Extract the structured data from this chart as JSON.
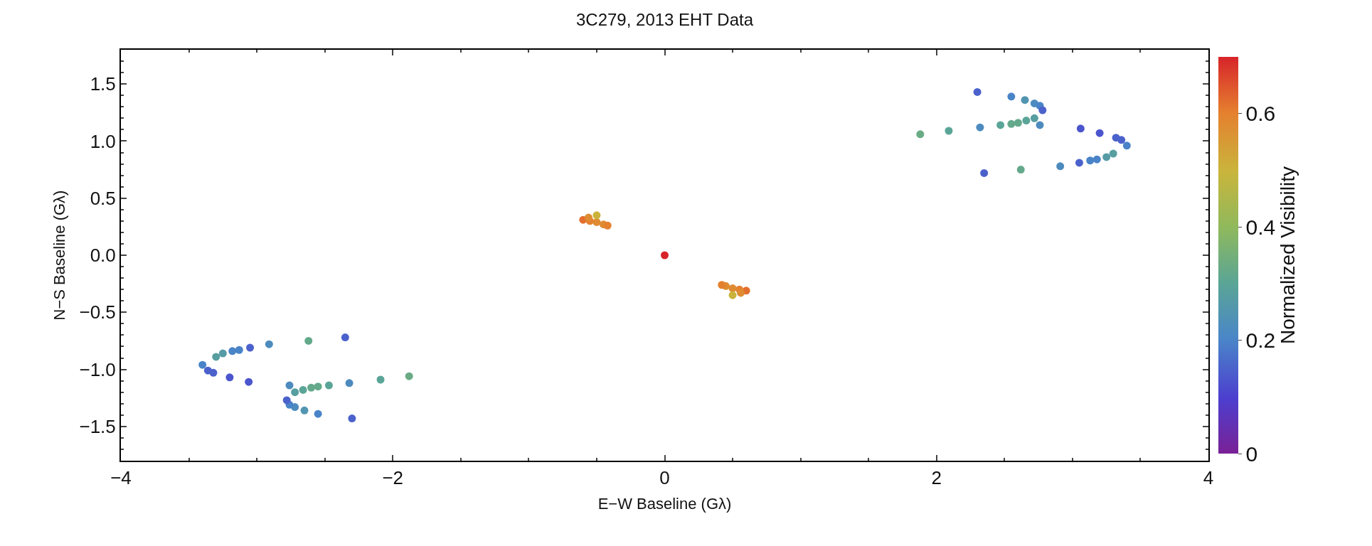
{
  "chart_data": {
    "type": "scatter",
    "title": "3C279, 2013 EHT Data",
    "xlabel": "E−W Baseline (Gλ)",
    "ylabel": "N−S Baseline (Gλ)",
    "clabel": "Normalized Visibility",
    "x": [
      2.3,
      2.55,
      2.65,
      2.72,
      2.76,
      2.78,
      1.88,
      2.09,
      2.32,
      2.47,
      2.55,
      2.6,
      2.66,
      2.72,
      2.76,
      2.35,
      2.62,
      2.91,
      3.05,
      3.13,
      3.18,
      3.25,
      3.3,
      3.4,
      3.36,
      3.32,
      3.2,
      3.06,
      -2.3,
      -2.55,
      -2.65,
      -2.72,
      -2.76,
      -2.78,
      -1.88,
      -2.09,
      -2.32,
      -2.47,
      -2.55,
      -2.6,
      -2.66,
      -2.72,
      -2.76,
      -2.35,
      -2.62,
      -2.91,
      -3.05,
      -3.13,
      -3.18,
      -3.25,
      -3.3,
      -3.4,
      -3.36,
      -3.32,
      -3.2,
      -3.06,
      -0.6,
      -0.55,
      -0.5,
      -0.45,
      -0.42,
      -0.5,
      -0.56,
      0.6,
      0.55,
      0.5,
      0.45,
      0.42,
      0.5,
      0.56,
      0
    ],
    "values": [
      1.43,
      1.39,
      1.36,
      1.33,
      1.31,
      1.27,
      1.06,
      1.09,
      1.12,
      1.14,
      1.15,
      1.16,
      1.18,
      1.2,
      1.14,
      0.72,
      0.75,
      0.78,
      0.81,
      0.83,
      0.84,
      0.86,
      0.89,
      0.96,
      1.01,
      1.03,
      1.07,
      1.11,
      -1.43,
      -1.39,
      -1.36,
      -1.33,
      -1.31,
      -1.27,
      -1.06,
      -1.09,
      -1.12,
      -1.14,
      -1.15,
      -1.16,
      -1.18,
      -1.2,
      -1.14,
      -0.72,
      -0.75,
      -0.78,
      -0.81,
      -0.83,
      -0.84,
      -0.86,
      -0.89,
      -0.96,
      -1.01,
      -1.03,
      -1.07,
      -1.11,
      0.31,
      0.3,
      0.29,
      0.27,
      0.26,
      0.35,
      0.33,
      -0.31,
      -0.3,
      -0.29,
      -0.27,
      -0.26,
      -0.35,
      -0.33,
      0
    ],
    "cvalues": [
      0.15,
      0.2,
      0.25,
      0.22,
      0.2,
      0.15,
      0.33,
      0.3,
      0.22,
      0.3,
      0.32,
      0.32,
      0.3,
      0.28,
      0.22,
      0.15,
      0.32,
      0.22,
      0.15,
      0.2,
      0.2,
      0.27,
      0.28,
      0.2,
      0.15,
      0.15,
      0.13,
      0.13,
      0.15,
      0.2,
      0.25,
      0.22,
      0.2,
      0.15,
      0.33,
      0.3,
      0.22,
      0.3,
      0.32,
      0.32,
      0.3,
      0.28,
      0.22,
      0.15,
      0.32,
      0.22,
      0.15,
      0.2,
      0.2,
      0.27,
      0.28,
      0.2,
      0.15,
      0.15,
      0.13,
      0.13,
      0.62,
      0.6,
      0.58,
      0.58,
      0.6,
      0.5,
      0.58,
      0.62,
      0.6,
      0.58,
      0.58,
      0.6,
      0.5,
      0.58,
      0.7
    ],
    "xlim": [
      -4,
      4
    ],
    "xticks": [
      {
        "value": -4,
        "label": "−4"
      },
      {
        "value": -2,
        "label": "−2"
      },
      0,
      2,
      4
    ],
    "ylim": [
      -1.8,
      1.8
    ],
    "yticks": [
      {
        "value": -1.5,
        "label": "−1.5"
      },
      {
        "value": -1,
        "label": "−1.0"
      },
      {
        "value": -0.5,
        "label": "−0.5"
      },
      {
        "value": 0,
        "label": "0.0"
      },
      0.5,
      {
        "value": 1,
        "label": "1.0"
      },
      1.5
    ],
    "clim": [
      0,
      0.7
    ],
    "cticks": [
      0,
      0.2,
      0.4,
      0.6
    ],
    "marker": "circle"
  }
}
